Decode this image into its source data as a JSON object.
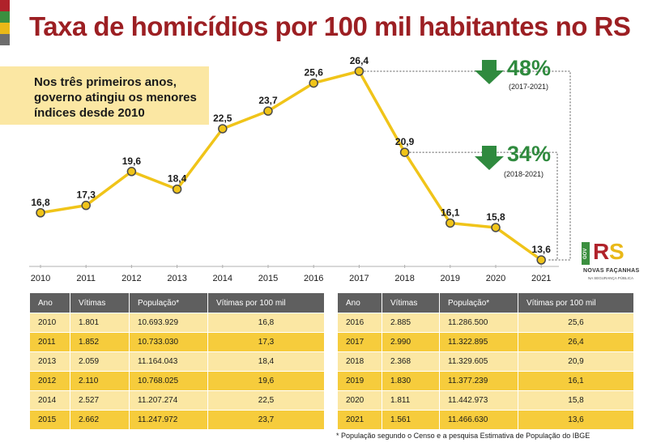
{
  "title": "Taxa de homicídios por 100 mil habitantes no RS",
  "callout": "Nos três primeiros anos, governo atingiu os menores índices desde 2010",
  "colors": {
    "title": "#9c1f23",
    "line": "#f0c419",
    "drop": "#2f8a3e",
    "flag": [
      "#b0222a",
      "#3b8f3f",
      "#e9b818",
      "#6d6d6d"
    ]
  },
  "drops": [
    {
      "percent": "48%",
      "period": "(2017-2021)",
      "icon": "down-arrow-icon"
    },
    {
      "percent": "34%",
      "period": "(2018-2021)",
      "icon": "down-arrow-icon"
    }
  ],
  "logo": {
    "gov": "GOV",
    "letters_r": "R",
    "letters_s": "S",
    "name": "NOVAS FAÇANHAS",
    "tagline": "NA SEGURANÇA PÚBLICA"
  },
  "chart_data": {
    "type": "line",
    "title": "Taxa de homicídios por 100 mil habitantes no RS",
    "xlabel": "",
    "ylabel": "",
    "x": [
      "2010",
      "2011",
      "2012",
      "2013",
      "2014",
      "2015",
      "2016",
      "2017",
      "2018",
      "2019",
      "2020",
      "2021"
    ],
    "values": [
      16.8,
      17.3,
      19.6,
      18.4,
      22.5,
      23.7,
      25.6,
      26.4,
      20.9,
      16.1,
      15.8,
      13.6
    ],
    "labels": [
      "16,8",
      "17,3",
      "19,6",
      "18,4",
      "22,5",
      "23,7",
      "25,6",
      "26,4",
      "20,9",
      "16,1",
      "15,8",
      "13,6"
    ],
    "ylim": [
      13.6,
      26.4
    ],
    "grid": false,
    "annotations": [
      "48% (2017-2021)",
      "34% (2018-2021)"
    ]
  },
  "table_headers": [
    "Ano",
    "Vítimas",
    "População*",
    "Vítimas por 100 mil"
  ],
  "table_left": [
    [
      "2010",
      "1.801",
      "10.693.929",
      "16,8"
    ],
    [
      "2011",
      "1.852",
      "10.733.030",
      "17,3"
    ],
    [
      "2013",
      "2.059",
      "11.164.043",
      "18,4"
    ],
    [
      "2012",
      "2.110",
      "10.768.025",
      "19,6"
    ],
    [
      "2014",
      "2.527",
      "11.207.274",
      "22,5"
    ],
    [
      "2015",
      "2.662",
      "11.247.972",
      "23,7"
    ]
  ],
  "table_right": [
    [
      "2016",
      "2.885",
      "11.286.500",
      "25,6"
    ],
    [
      "2017",
      "2.990",
      "11.322.895",
      "26,4"
    ],
    [
      "2018",
      "2.368",
      "11.329.605",
      "20,9"
    ],
    [
      "2019",
      "1.830",
      "11.377.239",
      "16,1"
    ],
    [
      "2020",
      "1.811",
      "11.442.973",
      "15,8"
    ],
    [
      "2021",
      "1.561",
      "11.466.630",
      "13,6"
    ]
  ],
  "footnote": "* População segundo o Censo e a pesquisa Estimativa de População do IBGE"
}
